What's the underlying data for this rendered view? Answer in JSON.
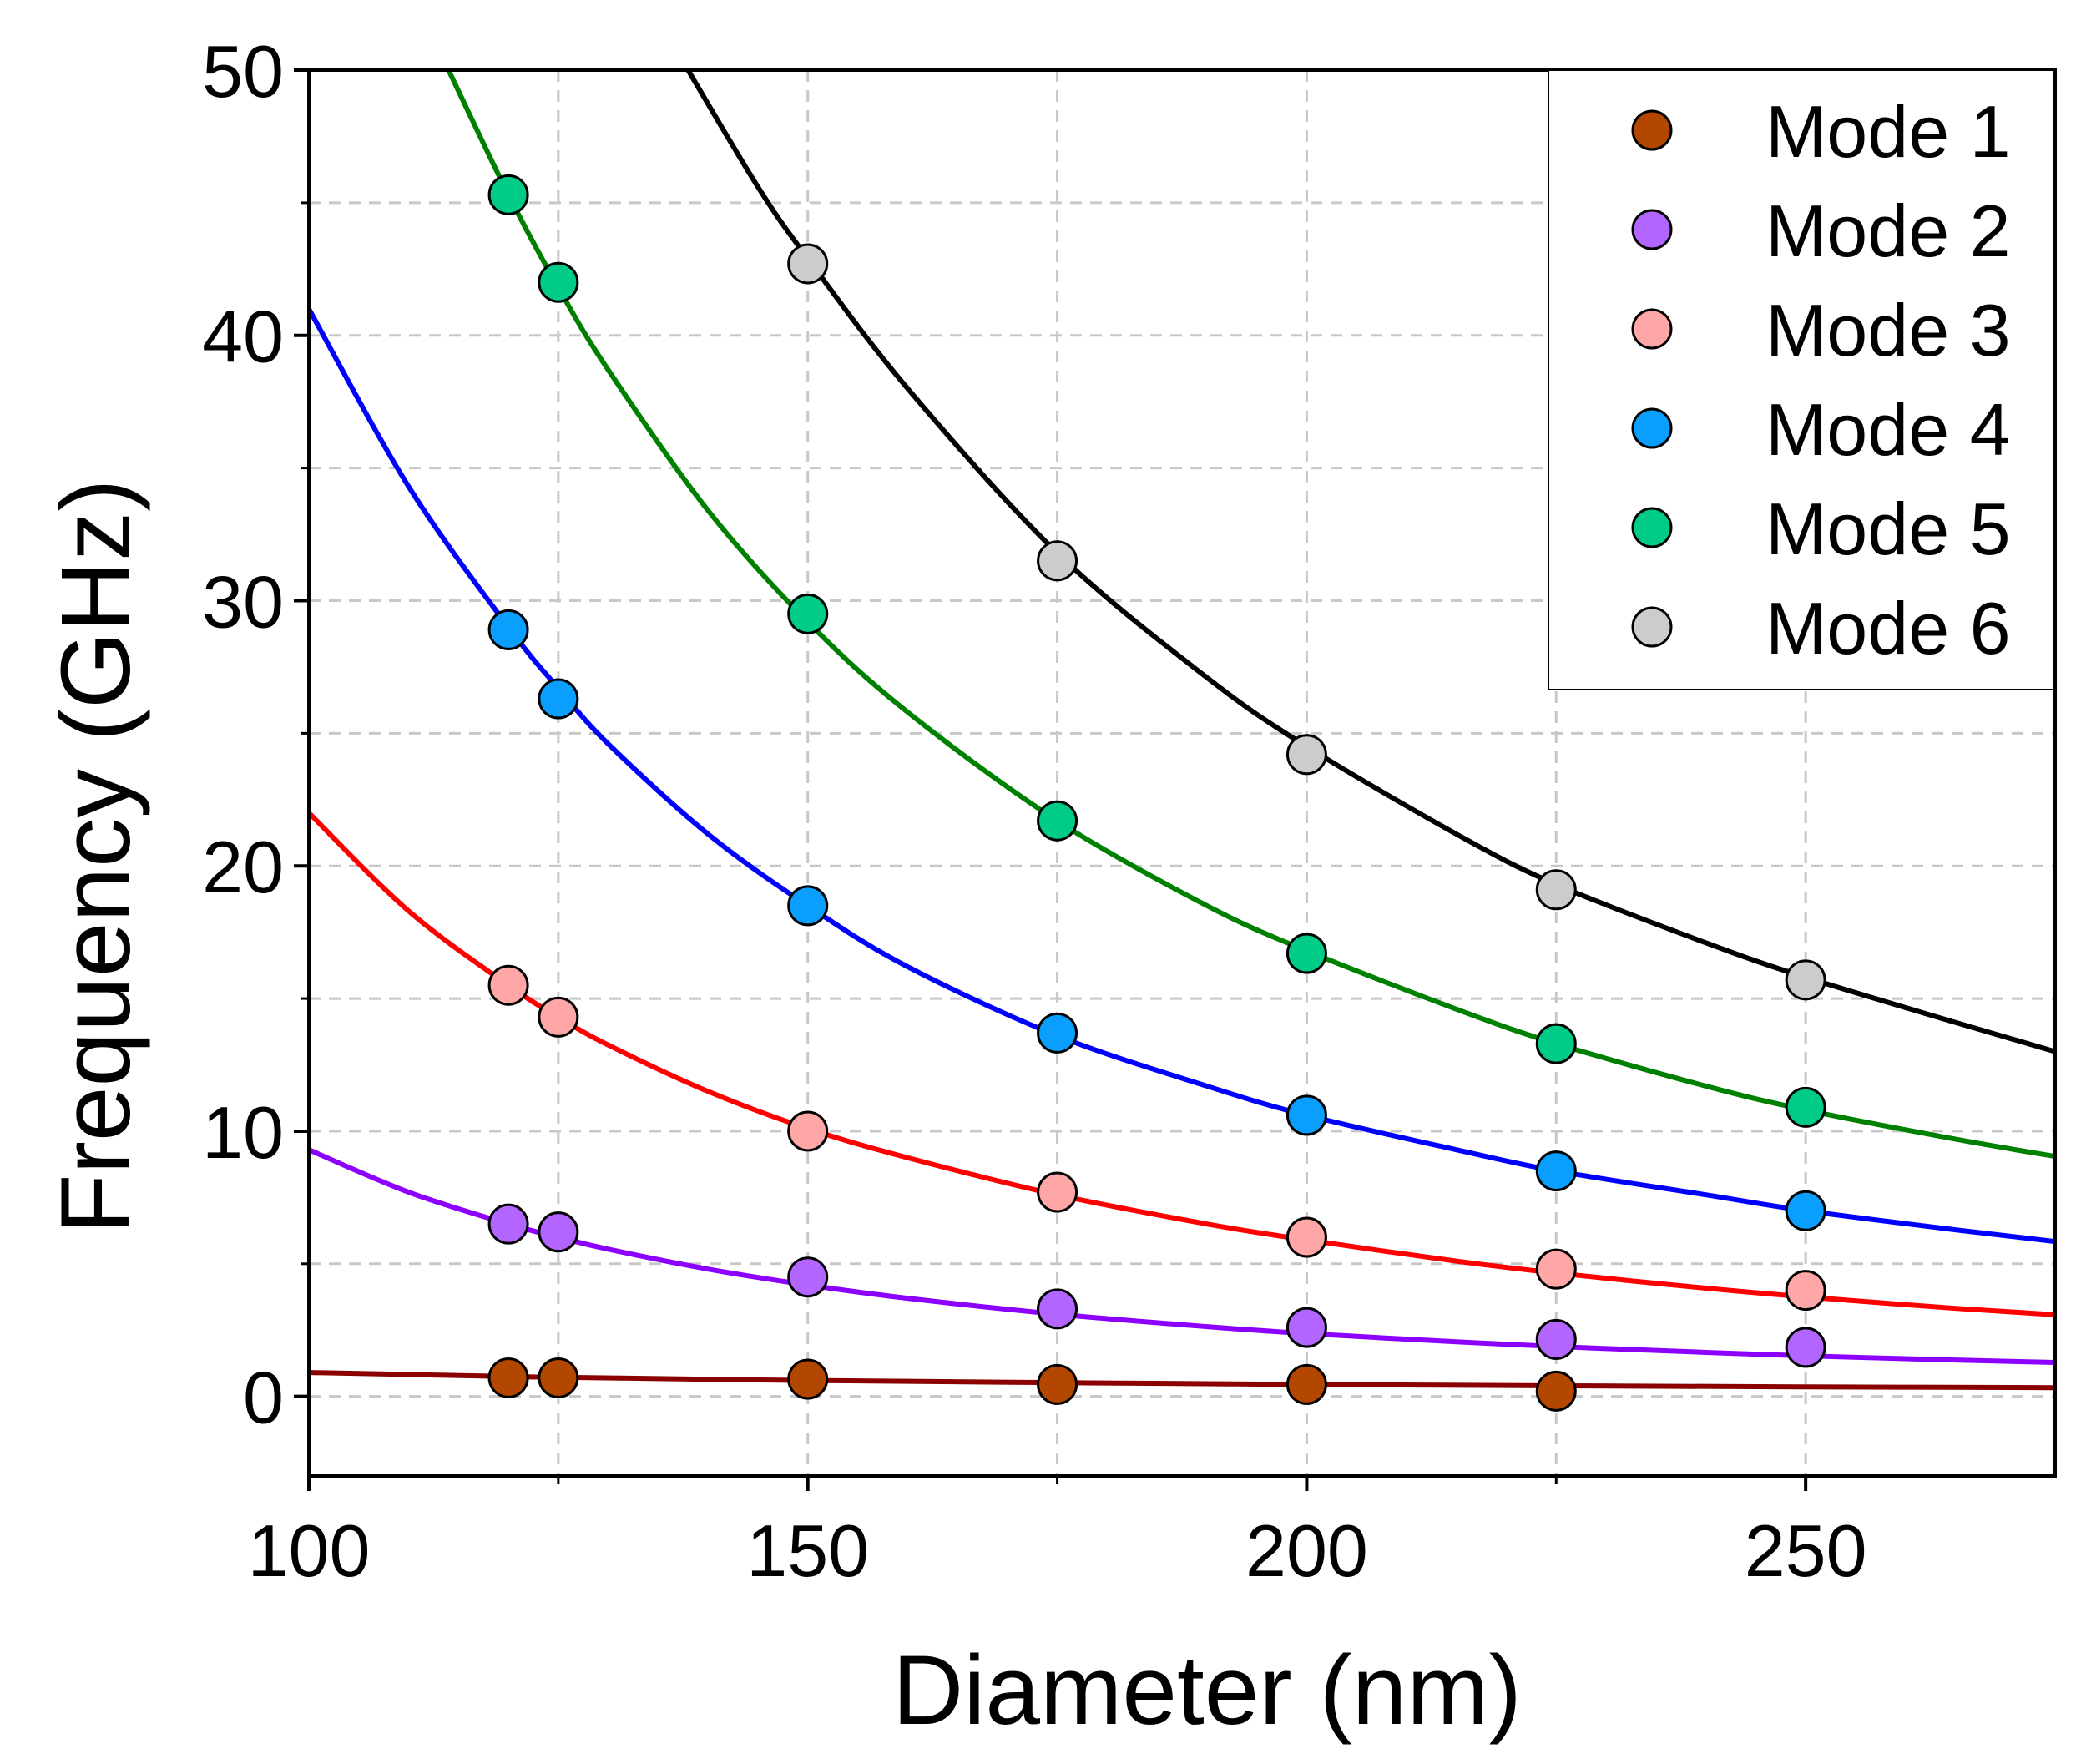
{
  "chart_data": {
    "type": "scatter",
    "title": "",
    "xlabel": "Diameter (nm)",
    "ylabel": "Frequency (GHz)",
    "xlim": [
      100,
      275
    ],
    "ylim": [
      -3,
      50
    ],
    "xticks": [
      100,
      150,
      200,
      250
    ],
    "yticks": [
      0,
      10,
      20,
      30,
      40,
      50
    ],
    "x_tick_labels": [
      "100",
      "150",
      "200",
      "250"
    ],
    "y_tick_labels": [
      "0",
      "10",
      "20",
      "30",
      "40",
      "50"
    ],
    "grid": true,
    "legend_position": "top-right",
    "series": [
      {
        "name": "Mode 1",
        "marker_color": "#B34700",
        "line_color": "#8B0000",
        "x": [
          120,
          125,
          150,
          175,
          200,
          225
        ],
        "y": [
          0.7,
          0.7,
          0.65,
          0.45,
          0.45,
          0.2
        ],
        "fit": {
          "x": [
            100,
            120,
            125,
            150,
            175,
            200,
            225,
            250,
            275
          ],
          "y": [
            0.9,
            0.75,
            0.72,
            0.6,
            0.52,
            0.45,
            0.4,
            0.36,
            0.33
          ]
        }
      },
      {
        "name": "Mode 2",
        "marker_color": "#B366FF",
        "line_color": "#8B00FF",
        "x": [
          120,
          125,
          150,
          175,
          200,
          225,
          250
        ],
        "y": [
          6.5,
          6.2,
          4.5,
          3.3,
          2.6,
          2.15,
          1.85
        ],
        "fit": {
          "x": [
            100,
            110,
            120,
            125,
            130,
            140,
            150,
            160,
            175,
            190,
            200,
            215,
            225,
            240,
            250,
            265,
            275
          ],
          "y": [
            9.3,
            7.7,
            6.5,
            6.0,
            5.55,
            4.8,
            4.2,
            3.7,
            3.1,
            2.63,
            2.37,
            2.06,
            1.88,
            1.66,
            1.53,
            1.37,
            1.28
          ]
        }
      },
      {
        "name": "Mode 3",
        "marker_color": "#FFA6A6",
        "line_color": "#FF0000",
        "x": [
          120,
          125,
          150,
          175,
          200,
          225,
          250
        ],
        "y": [
          15.5,
          14.3,
          10.0,
          7.7,
          6.0,
          4.8,
          4.0
        ],
        "fit": {
          "x": [
            100,
            110,
            120,
            125,
            130,
            140,
            150,
            160,
            175,
            190,
            200,
            215,
            225,
            240,
            250,
            265,
            275
          ],
          "y": [
            22.0,
            18.3,
            15.5,
            14.3,
            13.25,
            11.5,
            10.1,
            9.0,
            7.6,
            6.5,
            5.9,
            5.1,
            4.65,
            4.08,
            3.75,
            3.32,
            3.08
          ]
        }
      },
      {
        "name": "Mode 4",
        "marker_color": "#0A9EFF",
        "line_color": "#0000FF",
        "x": [
          120,
          125,
          150,
          175,
          200,
          225,
          250
        ],
        "y": [
          28.9,
          26.3,
          18.5,
          13.7,
          10.6,
          8.5,
          7.0
        ],
        "fit": {
          "x": [
            100,
            110,
            120,
            125,
            130,
            140,
            150,
            160,
            175,
            190,
            200,
            215,
            225,
            240,
            250,
            265,
            275
          ],
          "y": [
            41.0,
            34.3,
            29.0,
            26.7,
            24.6,
            21.2,
            18.5,
            16.2,
            13.6,
            11.7,
            10.6,
            9.3,
            8.5,
            7.6,
            7.0,
            6.28,
            5.84
          ]
        }
      },
      {
        "name": "Mode 5",
        "marker_color": "#00CC88",
        "line_color": "#008000",
        "x": [
          120,
          125,
          150,
          175,
          200,
          225,
          250
        ],
        "y": [
          45.3,
          42.0,
          29.5,
          21.7,
          16.7,
          13.3,
          10.9
        ],
        "fit": {
          "x": [
            114,
            120,
            125,
            130,
            140,
            150,
            160,
            175,
            190,
            200,
            215,
            225,
            240,
            250,
            265,
            275
          ],
          "y": [
            50.0,
            45.3,
            41.8,
            38.7,
            33.4,
            29.2,
            25.8,
            21.7,
            18.5,
            16.8,
            14.6,
            13.3,
            11.7,
            10.8,
            9.7,
            9.05
          ]
        }
      },
      {
        "name": "Mode 6",
        "marker_color": "#CCCCCC",
        "line_color": "#000000",
        "x": [
          150,
          175,
          200,
          225,
          250
        ],
        "y": [
          42.7,
          31.5,
          24.2,
          19.1,
          15.7
        ],
        "fit": {
          "x": [
            138,
            145,
            150,
            160,
            175,
            190,
            200,
            215,
            225,
            240,
            250,
            265,
            275
          ],
          "y": [
            50.0,
            45.6,
            42.9,
            38.0,
            31.8,
            27.1,
            24.5,
            21.2,
            19.3,
            17.1,
            15.8,
            14.1,
            13.0
          ]
        }
      }
    ]
  }
}
